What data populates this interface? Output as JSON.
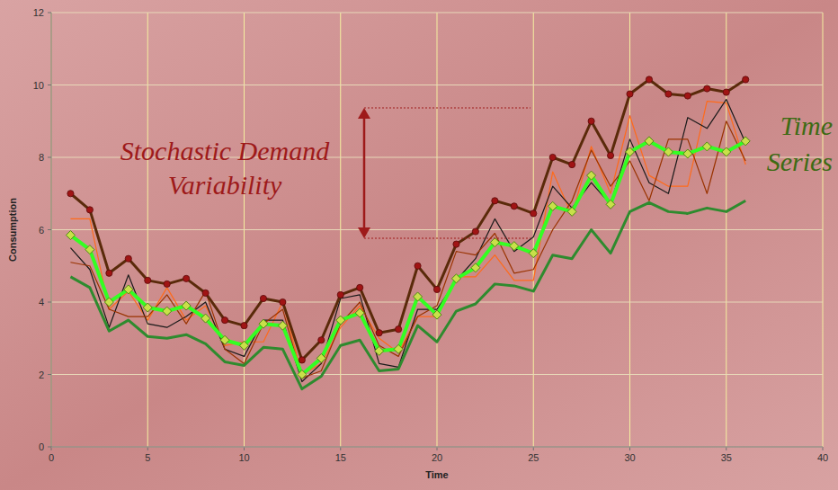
{
  "chart_data": {
    "type": "line",
    "x_label": "Time",
    "y_label": "Consumption",
    "x": [
      1,
      2,
      3,
      4,
      5,
      6,
      7,
      8,
      9,
      10,
      11,
      12,
      13,
      14,
      15,
      16,
      17,
      18,
      19,
      20,
      21,
      22,
      23,
      24,
      25,
      26,
      27,
      28,
      29,
      30,
      31,
      32,
      33,
      34,
      35,
      36
    ],
    "xlim": [
      0,
      40
    ],
    "xticks": [
      0,
      5,
      10,
      15,
      20,
      25,
      30,
      35,
      40
    ],
    "ylim": [
      0,
      12
    ],
    "yticks": [
      0,
      2,
      4,
      6,
      8,
      10,
      12
    ],
    "grid": true,
    "series": [
      {
        "color": "#ff6a1a",
        "line_style": "thin",
        "values": [
          6.3,
          6.3,
          3.8,
          4.3,
          3.5,
          4.4,
          3.5,
          3.9,
          2.8,
          2.9,
          2.9,
          4.0,
          2.0,
          2.3,
          3.3,
          3.9,
          3.0,
          2.6,
          3.6,
          3.6,
          4.7,
          4.7,
          5.3,
          4.6,
          4.6,
          7.6,
          6.4,
          8.3,
          7.0,
          9.15,
          7.5,
          7.2,
          7.2,
          9.55,
          9.5,
          7.8
        ]
      },
      {
        "color": "#1a1a1a",
        "line_style": "thin",
        "values": [
          5.5,
          4.9,
          3.3,
          4.75,
          3.4,
          3.3,
          3.6,
          4.0,
          2.7,
          2.5,
          3.5,
          3.5,
          1.8,
          2.3,
          4.1,
          4.2,
          2.3,
          2.2,
          3.8,
          3.8,
          4.6,
          5.2,
          6.3,
          5.4,
          5.8,
          7.2,
          6.6,
          7.3,
          6.7,
          8.5,
          7.3,
          7.0,
          9.1,
          8.8,
          9.6,
          8.4
        ]
      },
      {
        "color": "#993300",
        "line_style": "thin",
        "values": [
          5.1,
          5.0,
          3.8,
          3.6,
          3.6,
          4.2,
          3.4,
          4.3,
          2.7,
          2.3,
          3.4,
          3.8,
          1.9,
          2.1,
          3.4,
          4.0,
          2.8,
          2.5,
          3.6,
          3.9,
          5.4,
          5.3,
          5.9,
          4.8,
          4.9,
          6.0,
          6.8,
          8.2,
          7.2,
          7.9,
          6.8,
          8.5,
          8.5,
          7.0,
          9.0,
          7.9
        ]
      },
      {
        "color": "#2e8b2e",
        "line_style": "thick",
        "values": [
          4.7,
          4.4,
          3.2,
          3.5,
          3.05,
          3.0,
          3.1,
          2.85,
          2.35,
          2.25,
          2.75,
          2.7,
          1.6,
          1.95,
          2.8,
          2.95,
          2.1,
          2.15,
          3.35,
          2.9,
          3.75,
          3.95,
          4.5,
          4.45,
          4.3,
          5.3,
          5.2,
          6.0,
          5.35,
          6.5,
          6.75,
          6.5,
          6.45,
          6.6,
          6.5,
          6.8
        ]
      },
      {
        "color": "#33ff22",
        "line_style": "thick",
        "marker": "diamond",
        "values": [
          5.85,
          5.45,
          4.0,
          4.35,
          3.85,
          3.75,
          3.9,
          3.55,
          2.95,
          2.8,
          3.4,
          3.35,
          2.0,
          2.45,
          3.5,
          3.7,
          2.65,
          2.7,
          4.15,
          3.65,
          4.65,
          4.95,
          5.65,
          5.55,
          5.35,
          6.65,
          6.5,
          7.5,
          6.7,
          8.15,
          8.45,
          8.15,
          8.1,
          8.3,
          8.15,
          8.45
        ]
      },
      {
        "color": "#5a2a0a",
        "line_style": "thick",
        "marker": "circle",
        "values": [
          7.0,
          6.55,
          4.8,
          5.2,
          4.6,
          4.5,
          4.65,
          4.25,
          3.5,
          3.35,
          4.1,
          4.0,
          2.4,
          2.95,
          4.2,
          4.4,
          3.15,
          3.25,
          5.0,
          4.35,
          5.6,
          5.95,
          6.8,
          6.65,
          6.45,
          8.0,
          7.8,
          9.0,
          8.05,
          9.75,
          10.15,
          9.75,
          9.7,
          9.9,
          9.8,
          10.15
        ]
      }
    ],
    "annotations": [
      {
        "lines": [
          "Stochastic Demand",
          "Variability"
        ],
        "color": "#9e1a1a"
      },
      {
        "lines": [
          "Time",
          "Series"
        ],
        "color": "#3d6b14"
      }
    ]
  }
}
